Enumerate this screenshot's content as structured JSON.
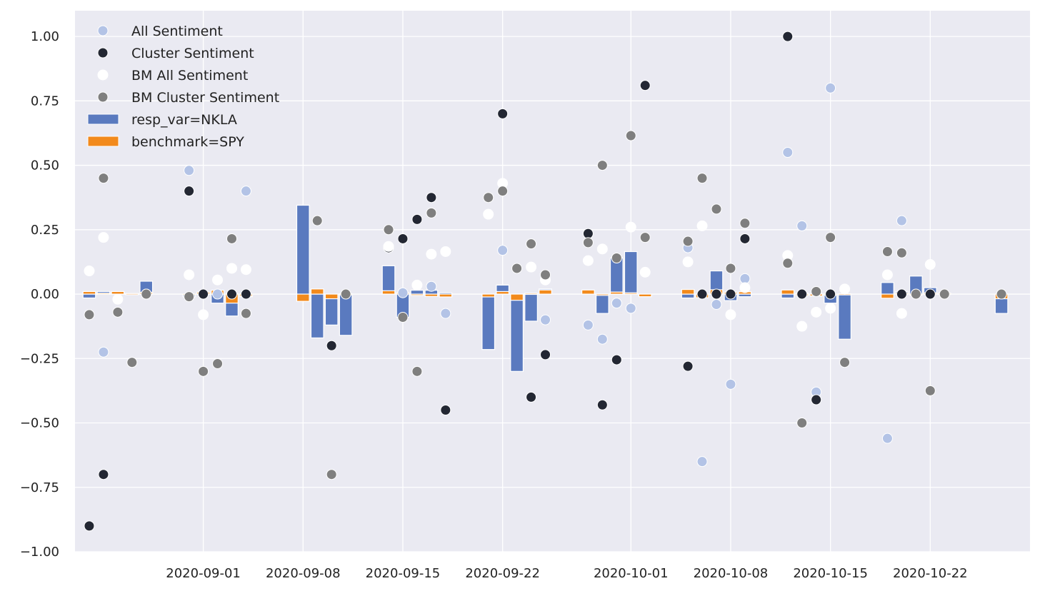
{
  "chart_data": {
    "type": "bar+scatter",
    "title": "",
    "xlabel": "",
    "ylabel": "",
    "xlim": [
      "2020-08-23",
      "2020-10-29"
    ],
    "ylim": [
      -1.0,
      1.1
    ],
    "yticks": [
      -1.0,
      -0.75,
      -0.5,
      -0.25,
      0.0,
      0.25,
      0.5,
      0.75,
      1.0
    ],
    "ytick_labels": [
      "−1.00",
      "−0.75",
      "−0.50",
      "−0.25",
      "0.00",
      "0.25",
      "0.50",
      "0.75",
      "1.00"
    ],
    "xticks": [
      "2020-09-01",
      "2020-09-08",
      "2020-09-15",
      "2020-09-22",
      "2020-10-01",
      "2020-10-08",
      "2020-10-15",
      "2020-10-22"
    ],
    "xtick_labels": [
      "2020-09-01",
      "2020-09-08",
      "2020-09-15",
      "2020-09-22",
      "2020-10-01",
      "2020-10-08",
      "2020-10-15",
      "2020-10-22"
    ],
    "grid": true,
    "legend_position": "top-left",
    "colors": {
      "background": "#eaeaf2",
      "grid": "#ffffff",
      "resp_var": "#5a7abf",
      "benchmark": "#f28a1c",
      "all_sentiment": "#b3c3e6",
      "cluster_sentiment": "#232733",
      "bm_all_sentiment": "#ffffff",
      "bm_cluster_sentiment": "#7f7f7f"
    },
    "legend": [
      {
        "label": "All Sentiment",
        "kind": "dot",
        "color": "#b3c3e6"
      },
      {
        "label": "Cluster Sentiment",
        "kind": "dot",
        "color": "#232733"
      },
      {
        "label": "BM All Sentiment",
        "kind": "dot",
        "color": "#ffffff"
      },
      {
        "label": "BM Cluster Sentiment",
        "kind": "dot",
        "color": "#7f7f7f"
      },
      {
        "label": "resp_var=NKLA",
        "kind": "bar",
        "color": "#5a7abf"
      },
      {
        "label": "benchmark=SPY",
        "kind": "bar",
        "color": "#f28a1c"
      }
    ],
    "resp_var": [
      [
        "2020-08-24",
        -0.015
      ],
      [
        "2020-08-25",
        0.01
      ],
      [
        "2020-08-26",
        0.005
      ],
      [
        "2020-08-27",
        0.002
      ],
      [
        "2020-08-28",
        0.05
      ],
      [
        "2020-08-31",
        -0.01
      ],
      [
        "2020-09-01",
        0.005
      ],
      [
        "2020-09-02",
        -0.035
      ],
      [
        "2020-09-03",
        -0.085
      ],
      [
        "2020-09-04",
        -0.01
      ],
      [
        "2020-09-08",
        0.345
      ],
      [
        "2020-09-09",
        -0.17
      ],
      [
        "2020-09-10",
        -0.12
      ],
      [
        "2020-09-11",
        -0.16
      ],
      [
        "2020-09-14",
        0.11
      ],
      [
        "2020-09-15",
        -0.09
      ],
      [
        "2020-09-16",
        0.015
      ],
      [
        "2020-09-17",
        0.015
      ],
      [
        "2020-09-18",
        0.005
      ],
      [
        "2020-09-21",
        -0.215
      ],
      [
        "2020-09-22",
        0.035
      ],
      [
        "2020-09-23",
        -0.3
      ],
      [
        "2020-09-24",
        -0.105
      ],
      [
        "2020-09-25",
        0.02
      ],
      [
        "2020-09-28",
        0.005
      ],
      [
        "2020-09-29",
        -0.075
      ],
      [
        "2020-09-30",
        0.14
      ],
      [
        "2020-10-01",
        0.165
      ],
      [
        "2020-10-02",
        -0.002
      ],
      [
        "2020-10-05",
        -0.015
      ],
      [
        "2020-10-06",
        -0.01
      ],
      [
        "2020-10-07",
        0.09
      ],
      [
        "2020-10-08",
        -0.025
      ],
      [
        "2020-10-09",
        -0.01
      ],
      [
        "2020-10-12",
        -0.015
      ],
      [
        "2020-10-13",
        0.003
      ],
      [
        "2020-10-14",
        -0.003
      ],
      [
        "2020-10-15",
        -0.035
      ],
      [
        "2020-10-16",
        -0.175
      ],
      [
        "2020-10-19",
        0.045
      ],
      [
        "2020-10-20",
        0.01
      ],
      [
        "2020-10-21",
        0.07
      ],
      [
        "2020-10-22",
        0.025
      ],
      [
        "2020-10-23",
        0.003
      ],
      [
        "2020-10-27",
        -0.075
      ]
    ],
    "benchmark": [
      [
        "2020-08-24",
        0.01
      ],
      [
        "2020-08-25",
        0.004
      ],
      [
        "2020-08-26",
        0.01
      ],
      [
        "2020-08-27",
        0.002
      ],
      [
        "2020-08-28",
        0.007
      ],
      [
        "2020-08-31",
        -0.002
      ],
      [
        "2020-09-01",
        0.008
      ],
      [
        "2020-09-02",
        0.015
      ],
      [
        "2020-09-03",
        -0.035
      ],
      [
        "2020-09-04",
        -0.008
      ],
      [
        "2020-09-08",
        -0.028
      ],
      [
        "2020-09-09",
        0.02
      ],
      [
        "2020-09-10",
        -0.018
      ],
      [
        "2020-09-11",
        0.001
      ],
      [
        "2020-09-14",
        0.013
      ],
      [
        "2020-09-15",
        0.005
      ],
      [
        "2020-09-16",
        -0.005
      ],
      [
        "2020-09-17",
        -0.009
      ],
      [
        "2020-09-18",
        -0.011
      ],
      [
        "2020-09-21",
        -0.011
      ],
      [
        "2020-09-22",
        0.01
      ],
      [
        "2020-09-23",
        -0.024
      ],
      [
        "2020-09-24",
        0.003
      ],
      [
        "2020-09-25",
        0.016
      ],
      [
        "2020-09-28",
        0.016
      ],
      [
        "2020-09-29",
        -0.005
      ],
      [
        "2020-09-30",
        0.008
      ],
      [
        "2020-10-01",
        0.005
      ],
      [
        "2020-10-02",
        -0.01
      ],
      [
        "2020-10-05",
        0.018
      ],
      [
        "2020-10-06",
        -0.014
      ],
      [
        "2020-10-07",
        0.017
      ],
      [
        "2020-10-08",
        0.008
      ],
      [
        "2020-10-09",
        0.009
      ],
      [
        "2020-10-12",
        0.016
      ],
      [
        "2020-10-13",
        -0.006
      ],
      [
        "2020-10-14",
        -0.007
      ],
      [
        "2020-10-15",
        -0.002
      ],
      [
        "2020-10-16",
        0.001
      ],
      [
        "2020-10-19",
        -0.016
      ],
      [
        "2020-10-20",
        0.005
      ],
      [
        "2020-10-21",
        -0.002
      ],
      [
        "2020-10-22",
        0.005
      ],
      [
        "2020-10-23",
        0.003
      ],
      [
        "2020-10-27",
        -0.018
      ]
    ],
    "all_sentiment": [
      [
        "2020-08-25",
        -0.225
      ],
      [
        "2020-08-31",
        0.48
      ],
      [
        "2020-09-02",
        0.0
      ],
      [
        "2020-09-04",
        0.4
      ],
      [
        "2020-09-14",
        0.18
      ],
      [
        "2020-09-15",
        0.005
      ],
      [
        "2020-09-17",
        0.03
      ],
      [
        "2020-09-18",
        -0.075
      ],
      [
        "2020-09-22",
        0.17
      ],
      [
        "2020-09-25",
        -0.1
      ],
      [
        "2020-09-28",
        -0.12
      ],
      [
        "2020-09-29",
        -0.175
      ],
      [
        "2020-09-30",
        -0.035
      ],
      [
        "2020-10-01",
        -0.055
      ],
      [
        "2020-10-05",
        0.18
      ],
      [
        "2020-10-06",
        -0.65
      ],
      [
        "2020-10-07",
        -0.04
      ],
      [
        "2020-10-08",
        -0.35
      ],
      [
        "2020-10-09",
        0.06
      ],
      [
        "2020-10-12",
        0.55
      ],
      [
        "2020-10-13",
        0.265
      ],
      [
        "2020-10-14",
        -0.38
      ],
      [
        "2020-10-15",
        0.8
      ],
      [
        "2020-10-19",
        -0.56
      ],
      [
        "2020-10-20",
        0.285
      ]
    ],
    "cluster_sentiment": [
      [
        "2020-08-24",
        -0.9
      ],
      [
        "2020-08-25",
        -0.7
      ],
      [
        "2020-08-28",
        0.0
      ],
      [
        "2020-08-31",
        0.4
      ],
      [
        "2020-09-01",
        0.0
      ],
      [
        "2020-09-03",
        0.0
      ],
      [
        "2020-09-04",
        0.0
      ],
      [
        "2020-09-10",
        -0.2
      ],
      [
        "2020-09-14",
        0.18
      ],
      [
        "2020-09-15",
        0.215
      ],
      [
        "2020-09-16",
        0.29
      ],
      [
        "2020-09-17",
        0.375
      ],
      [
        "2020-09-18",
        -0.45
      ],
      [
        "2020-09-22",
        0.7
      ],
      [
        "2020-09-24",
        -0.4
      ],
      [
        "2020-09-25",
        -0.235
      ],
      [
        "2020-09-28",
        0.235
      ],
      [
        "2020-09-29",
        -0.43
      ],
      [
        "2020-09-30",
        -0.255
      ],
      [
        "2020-10-02",
        0.81
      ],
      [
        "2020-10-05",
        -0.28
      ],
      [
        "2020-10-06",
        0.0
      ],
      [
        "2020-10-07",
        0.0
      ],
      [
        "2020-10-08",
        0.0
      ],
      [
        "2020-10-09",
        0.215
      ],
      [
        "2020-10-12",
        1.0
      ],
      [
        "2020-10-13",
        0.0
      ],
      [
        "2020-10-14",
        -0.41
      ],
      [
        "2020-10-15",
        0.0
      ],
      [
        "2020-10-20",
        0.0
      ],
      [
        "2020-10-22",
        0.0
      ]
    ],
    "bm_all_sentiment": [
      [
        "2020-08-24",
        0.09
      ],
      [
        "2020-08-25",
        0.22
      ],
      [
        "2020-08-26",
        -0.02
      ],
      [
        "2020-08-31",
        0.075
      ],
      [
        "2020-09-01",
        -0.08
      ],
      [
        "2020-09-02",
        0.055
      ],
      [
        "2020-09-03",
        0.1
      ],
      [
        "2020-09-04",
        0.095
      ],
      [
        "2020-09-14",
        0.185
      ],
      [
        "2020-09-16",
        0.035
      ],
      [
        "2020-09-17",
        0.155
      ],
      [
        "2020-09-18",
        0.165
      ],
      [
        "2020-09-21",
        0.31
      ],
      [
        "2020-09-22",
        0.43
      ],
      [
        "2020-09-24",
        0.105
      ],
      [
        "2020-09-25",
        0.055
      ],
      [
        "2020-09-28",
        0.13
      ],
      [
        "2020-09-29",
        0.175
      ],
      [
        "2020-10-01",
        0.26
      ],
      [
        "2020-10-02",
        0.085
      ],
      [
        "2020-10-05",
        0.125
      ],
      [
        "2020-10-06",
        0.265
      ],
      [
        "2020-10-08",
        -0.08
      ],
      [
        "2020-10-09",
        0.025
      ],
      [
        "2020-10-12",
        0.15
      ],
      [
        "2020-10-13",
        -0.125
      ],
      [
        "2020-10-14",
        -0.07
      ],
      [
        "2020-10-15",
        -0.055
      ],
      [
        "2020-10-16",
        0.02
      ],
      [
        "2020-10-19",
        0.075
      ],
      [
        "2020-10-20",
        -0.075
      ],
      [
        "2020-10-22",
        0.115
      ]
    ],
    "bm_cluster_sentiment": [
      [
        "2020-08-24",
        -0.08
      ],
      [
        "2020-08-25",
        0.45
      ],
      [
        "2020-08-26",
        -0.07
      ],
      [
        "2020-08-27",
        -0.265
      ],
      [
        "2020-08-28",
        0.0
      ],
      [
        "2020-08-31",
        -0.01
      ],
      [
        "2020-09-01",
        -0.3
      ],
      [
        "2020-09-02",
        -0.27
      ],
      [
        "2020-09-03",
        0.215
      ],
      [
        "2020-09-04",
        -0.075
      ],
      [
        "2020-09-09",
        0.285
      ],
      [
        "2020-09-10",
        -0.7
      ],
      [
        "2020-09-11",
        0.0
      ],
      [
        "2020-09-14",
        0.25
      ],
      [
        "2020-09-15",
        -0.09
      ],
      [
        "2020-09-16",
        -0.3
      ],
      [
        "2020-09-17",
        0.315
      ],
      [
        "2020-09-21",
        0.375
      ],
      [
        "2020-09-22",
        0.4
      ],
      [
        "2020-09-23",
        0.1
      ],
      [
        "2020-09-24",
        0.195
      ],
      [
        "2020-09-25",
        0.075
      ],
      [
        "2020-09-28",
        0.2
      ],
      [
        "2020-09-29",
        0.5
      ],
      [
        "2020-09-30",
        0.14
      ],
      [
        "2020-10-01",
        0.615
      ],
      [
        "2020-10-02",
        0.22
      ],
      [
        "2020-10-05",
        0.205
      ],
      [
        "2020-10-06",
        0.45
      ],
      [
        "2020-10-07",
        0.33
      ],
      [
        "2020-10-08",
        0.1
      ],
      [
        "2020-10-09",
        0.275
      ],
      [
        "2020-10-12",
        0.12
      ],
      [
        "2020-10-13",
        -0.5
      ],
      [
        "2020-10-14",
        0.01
      ],
      [
        "2020-10-15",
        0.22
      ],
      [
        "2020-10-16",
        -0.265
      ],
      [
        "2020-10-19",
        0.165
      ],
      [
        "2020-10-20",
        0.16
      ],
      [
        "2020-10-21",
        0.0
      ],
      [
        "2020-10-22",
        -0.375
      ],
      [
        "2020-10-23",
        0.0
      ],
      [
        "2020-10-27",
        0.0
      ]
    ]
  }
}
